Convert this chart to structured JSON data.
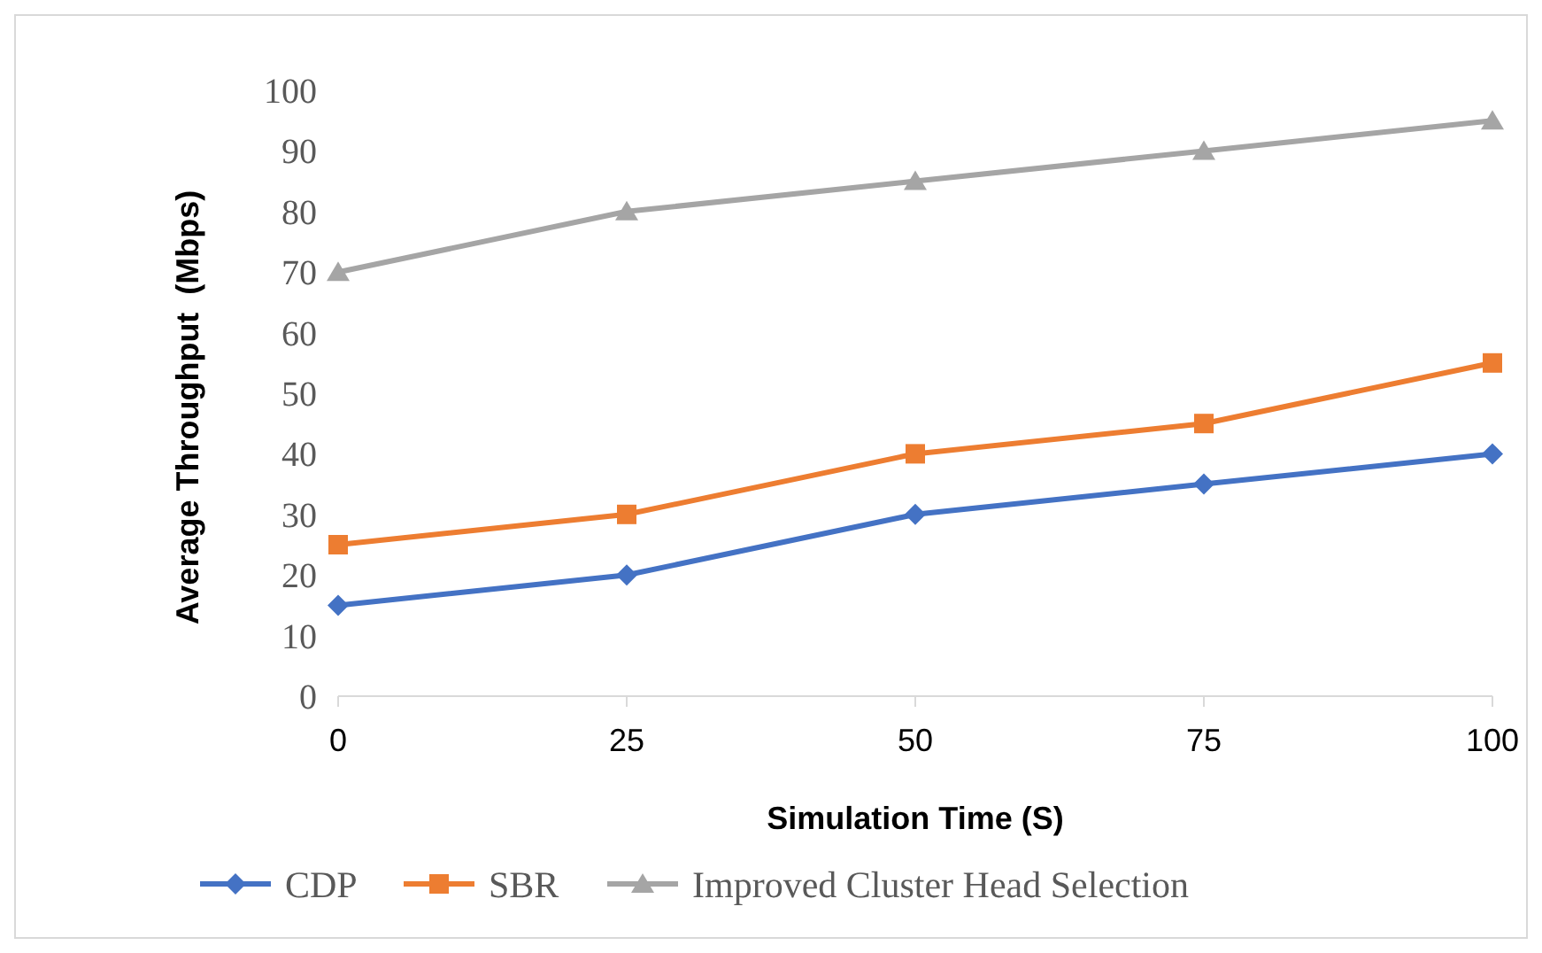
{
  "chart_data": {
    "type": "line",
    "xlabel": "Simulation Time (S)",
    "ylabel": "Average Throughput  (Mbps)",
    "x": [
      0,
      25,
      50,
      75,
      100
    ],
    "series": [
      {
        "name": "CDP",
        "color": "#4472c4",
        "marker": "diamond",
        "values": [
          15,
          20,
          30,
          35,
          40
        ]
      },
      {
        "name": "SBR",
        "color": "#ed7d31",
        "marker": "square",
        "values": [
          25,
          30,
          40,
          45,
          55
        ]
      },
      {
        "name": "Improved Cluster Head Selection",
        "color": "#a5a5a5",
        "marker": "triangle",
        "values": [
          70,
          80,
          85,
          90,
          95
        ]
      }
    ],
    "xlim": [
      0,
      100
    ],
    "xticks": [
      0,
      25,
      50,
      75,
      100
    ],
    "ylim": [
      0,
      100
    ],
    "yticks": [
      0,
      10,
      20,
      30,
      40,
      50,
      60,
      70,
      80,
      90,
      100
    ],
    "grid": false,
    "legend": "bottom",
    "line_style": "solid"
  }
}
